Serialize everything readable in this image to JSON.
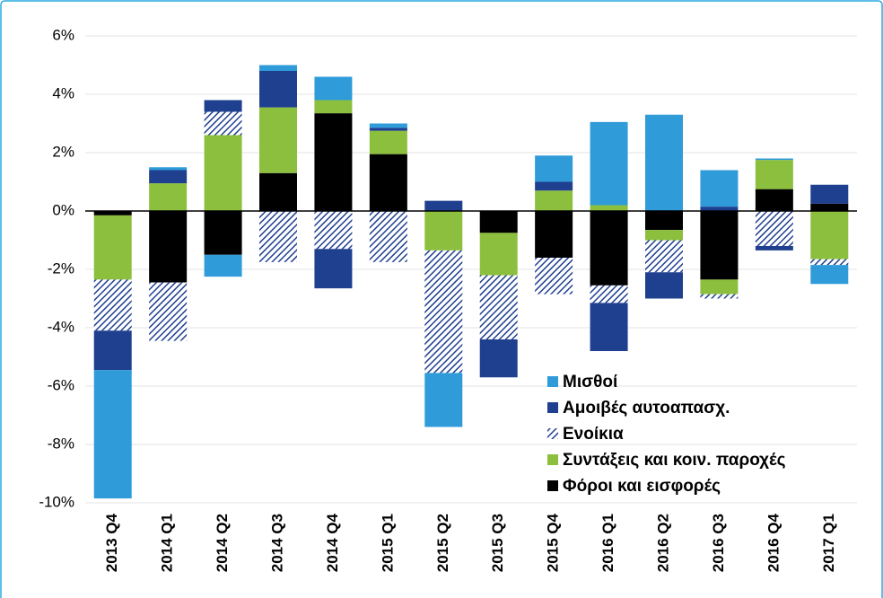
{
  "chart_data": {
    "type": "stacked_bar",
    "categories": [
      "2013 Q4",
      "2014 Q1",
      "2014 Q2",
      "2014 Q3",
      "2014 Q4",
      "2015 Q1",
      "2015 Q2",
      "2015 Q3",
      "2015 Q4",
      "2016 Q1",
      "2016 Q2",
      "2016 Q3",
      "2016 Q4",
      "2017 Q1"
    ],
    "series": [
      {
        "name": "Μισθοί",
        "color": "#2f9bd9",
        "values": [
          -4.4,
          0.1,
          -0.75,
          0.2,
          0.8,
          0.15,
          -1.85,
          0,
          0.9,
          2.85,
          3.3,
          1.25,
          0.05,
          -0.65
        ]
      },
      {
        "name": "Αμοιβές αυτοαπασχ.",
        "color": "#1f3f8f",
        "values": [
          -1.35,
          0.45,
          0.4,
          1.25,
          -1.35,
          0.1,
          0.35,
          -1.3,
          0.3,
          -1.65,
          -0.9,
          0.15,
          -0.15,
          0.65
        ]
      },
      {
        "name": "Ενοίκια",
        "color": "#1f3f8f",
        "hatch": true,
        "values": [
          -1.75,
          -2.0,
          0.8,
          -1.75,
          -1.3,
          -1.75,
          -4.2,
          -2.2,
          -1.25,
          -0.6,
          -1.1,
          -0.15,
          -1.2,
          -0.2
        ]
      },
      {
        "name": "Συντάξεις και κοιν. παροχές",
        "color": "#8dbf3e",
        "values": [
          -2.2,
          0.95,
          2.6,
          2.25,
          0.45,
          0.8,
          -1.35,
          -1.45,
          0.7,
          0.2,
          -0.35,
          -0.5,
          1.0,
          -1.65
        ]
      },
      {
        "name": "Φόροι και εισφορές",
        "color": "#000000",
        "values": [
          -0.15,
          -2.45,
          -1.5,
          1.3,
          3.35,
          1.95,
          0,
          -0.75,
          -1.6,
          -2.55,
          -0.65,
          -2.35,
          0.75,
          0.25
        ]
      }
    ],
    "ylim": [
      -10,
      6
    ],
    "yticks": [
      {
        "value": -10,
        "label": "-10%"
      },
      {
        "value": -8,
        "label": "-8%"
      },
      {
        "value": -6,
        "label": "-6%"
      },
      {
        "value": -4,
        "label": "-4%"
      },
      {
        "value": -2,
        "label": "-2%"
      },
      {
        "value": 0,
        "label": "0%"
      },
      {
        "value": 2,
        "label": "2%"
      },
      {
        "value": 4,
        "label": "4%"
      },
      {
        "value": 6,
        "label": "6%"
      }
    ],
    "grid": true,
    "legend": "lower right"
  }
}
